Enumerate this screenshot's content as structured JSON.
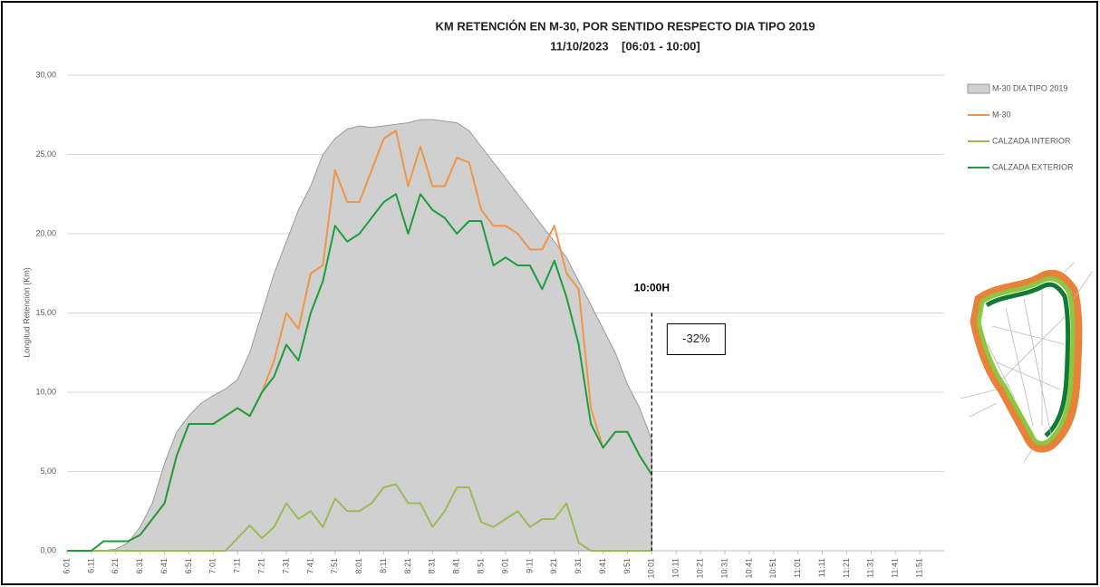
{
  "chart_data": {
    "type": "line",
    "title": "KM RETENCIÓN EN M-30, POR SENTIDO RESPECTO DIA TIPO 2019",
    "subtitle": "11/10/2023    [06:01 - 10:00]",
    "y_label": "Longitud Retención (Km)",
    "x": [
      361,
      366,
      371,
      376,
      381,
      386,
      391,
      396,
      401,
      406,
      411,
      416,
      421,
      426,
      431,
      436,
      441,
      446,
      451,
      456,
      461,
      466,
      471,
      476,
      481,
      486,
      491,
      496,
      501,
      506,
      511,
      516,
      521,
      526,
      531,
      536,
      541,
      546,
      551,
      556,
      561,
      566,
      571,
      576,
      581,
      586,
      591,
      596,
      601
    ],
    "series": [
      {
        "name": "M-30 DIA TIPO 2019",
        "style": "area",
        "color": "#d0d0d0",
        "values": [
          0,
          0,
          0,
          0,
          0.1,
          0.5,
          1.5,
          3,
          5.5,
          7.5,
          8.5,
          9.3,
          9.8,
          10.2,
          10.8,
          12.5,
          15,
          17.5,
          19.5,
          21.5,
          23,
          25,
          26,
          26.6,
          26.8,
          26.7,
          26.8,
          26.9,
          27,
          27.2,
          27.2,
          27.1,
          27,
          26.5,
          25.5,
          24.5,
          23.5,
          22.5,
          21.5,
          20.5,
          19.5,
          18.5,
          17,
          15.5,
          14,
          12.5,
          10.5,
          9,
          7
        ]
      },
      {
        "name": "M-30",
        "style": "line",
        "color": "#f0964b",
        "values": [
          0,
          0,
          0,
          0.6,
          0.6,
          0.6,
          1,
          2,
          3,
          6,
          8,
          8,
          8,
          8.5,
          9,
          8.5,
          10,
          12,
          15,
          14,
          17.5,
          18,
          24,
          22,
          22,
          24,
          26,
          26.5,
          23,
          25.5,
          23,
          23,
          24.8,
          24.5,
          21.5,
          20.5,
          20.5,
          20,
          19,
          19,
          20.5,
          17.5,
          16.5,
          9,
          6.5,
          7.5,
          7.5,
          6,
          4.8
        ]
      },
      {
        "name": "CALZADA INTERIOR",
        "style": "line",
        "color": "#9bbb59",
        "values": [
          0,
          0,
          0,
          0,
          0,
          0,
          0,
          0,
          0,
          0,
          0,
          0,
          0,
          0,
          0.8,
          1.6,
          0.8,
          1.5,
          3,
          2,
          2.5,
          1.5,
          3.3,
          2.5,
          2.5,
          3,
          4,
          4.2,
          3,
          3,
          1.5,
          2.5,
          4,
          4,
          1.8,
          1.5,
          2,
          2.5,
          1.5,
          2,
          2,
          3,
          0.5,
          0,
          0,
          0,
          0,
          0,
          0
        ]
      },
      {
        "name": "CALZADA EXTERIOR",
        "style": "line",
        "color": "#1e9e3e",
        "values": [
          0,
          0,
          0,
          0.6,
          0.6,
          0.6,
          1,
          2,
          3,
          6,
          8,
          8,
          8,
          8.5,
          9,
          8.5,
          10,
          11,
          13,
          12,
          15,
          17,
          20.5,
          19.5,
          20,
          21,
          22,
          22.5,
          20,
          22.5,
          21.5,
          21,
          20,
          20.8,
          20.8,
          18,
          18.5,
          18,
          18,
          16.5,
          18.3,
          16,
          13,
          8,
          6.5,
          7.5,
          7.5,
          6,
          4.8
        ]
      }
    ],
    "xlim": [
      361,
      721
    ],
    "xticks": [
      {
        "value": 361,
        "label": "6:01"
      },
      {
        "value": 371,
        "label": "6:11"
      },
      {
        "value": 381,
        "label": "6:21"
      },
      {
        "value": 391,
        "label": "6:31"
      },
      {
        "value": 401,
        "label": "6:41"
      },
      {
        "value": 411,
        "label": "6:51"
      },
      {
        "value": 421,
        "label": "7:01"
      },
      {
        "value": 431,
        "label": "7:11"
      },
      {
        "value": 441,
        "label": "7:21"
      },
      {
        "value": 451,
        "label": "7:31"
      },
      {
        "value": 461,
        "label": "7:41"
      },
      {
        "value": 471,
        "label": "7:51"
      },
      {
        "value": 481,
        "label": "8:01"
      },
      {
        "value": 491,
        "label": "8:11"
      },
      {
        "value": 501,
        "label": "8:21"
      },
      {
        "value": 511,
        "label": "8:31"
      },
      {
        "value": 521,
        "label": "8:41"
      },
      {
        "value": 531,
        "label": "8:51"
      },
      {
        "value": 541,
        "label": "9:01"
      },
      {
        "value": 551,
        "label": "9:11"
      },
      {
        "value": 561,
        "label": "9:21"
      },
      {
        "value": 571,
        "label": "9:31"
      },
      {
        "value": 581,
        "label": "9:41"
      },
      {
        "value": 591,
        "label": "9:51"
      },
      {
        "value": 601,
        "label": "10:01"
      },
      {
        "value": 611,
        "label": "10:11"
      },
      {
        "value": 621,
        "label": "10:21"
      },
      {
        "value": 631,
        "label": "10:31"
      },
      {
        "value": 641,
        "label": "10:41"
      },
      {
        "value": 651,
        "label": "10:51"
      },
      {
        "value": 661,
        "label": "11:01"
      },
      {
        "value": 671,
        "label": "11:11"
      },
      {
        "value": 681,
        "label": "11:21"
      },
      {
        "value": 691,
        "label": "11:31"
      },
      {
        "value": 701,
        "label": "11:41"
      },
      {
        "value": 711,
        "label": "11:51"
      }
    ],
    "ylim": [
      0,
      30
    ],
    "yticks": [
      {
        "value": 0,
        "label": "0,00"
      },
      {
        "value": 5,
        "label": "5,00"
      },
      {
        "value": 10,
        "label": "10,00"
      },
      {
        "value": 15,
        "label": "15,00"
      },
      {
        "value": 20,
        "label": "20,00"
      },
      {
        "value": 25,
        "label": "25,00"
      },
      {
        "value": 30,
        "label": "30,00"
      }
    ],
    "grid": true,
    "legend": "right",
    "marker_line": {
      "x": 601,
      "top": 15,
      "label": "10:00H"
    },
    "box_annotation": "-32%"
  }
}
